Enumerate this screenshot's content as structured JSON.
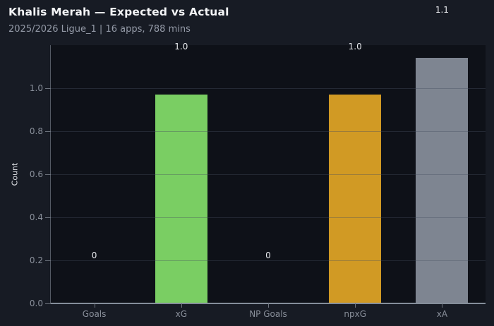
{
  "chart_data": {
    "type": "bar",
    "title": "Khalis Merah — Expected vs Actual",
    "subtitle": "2025/2026 Ligue_1 | 16 apps, 788 mins",
    "ylabel": "Count",
    "xlabel": "",
    "categories": [
      "Goals",
      "xG",
      "NP Goals",
      "npxG",
      "xA"
    ],
    "values": [
      0,
      0.97,
      0,
      0.97,
      1.14
    ],
    "bar_labels": [
      "0",
      "1.0",
      "0",
      "1.0",
      "1.1"
    ],
    "bar_colors": [
      "",
      "#7ace63",
      "",
      "#d19a24",
      "#7e8591"
    ],
    "ylim": [
      0,
      1.2
    ],
    "yticks": [
      0,
      0.2,
      0.4,
      0.6,
      0.8,
      1.0
    ],
    "ytick_labels": [
      "0.0",
      "0.2",
      "0.4",
      "0.6",
      "0.8",
      "1.0"
    ],
    "grid": true,
    "legend": false
  },
  "colors": {
    "outer_bg": "#171b24",
    "plot_bg": "#0e1118",
    "title": "#f3f4f6",
    "subtitle": "#949aa7",
    "tick_label": "#8a909b",
    "value_label": "#e7e9ed",
    "ylabel": "#e4e6ea",
    "grid_line": "rgba(70,78,95,0.4)",
    "spine_bottom": "#858e9a",
    "spine_left": "#545a64",
    "tick_mark": "#6e747e"
  }
}
